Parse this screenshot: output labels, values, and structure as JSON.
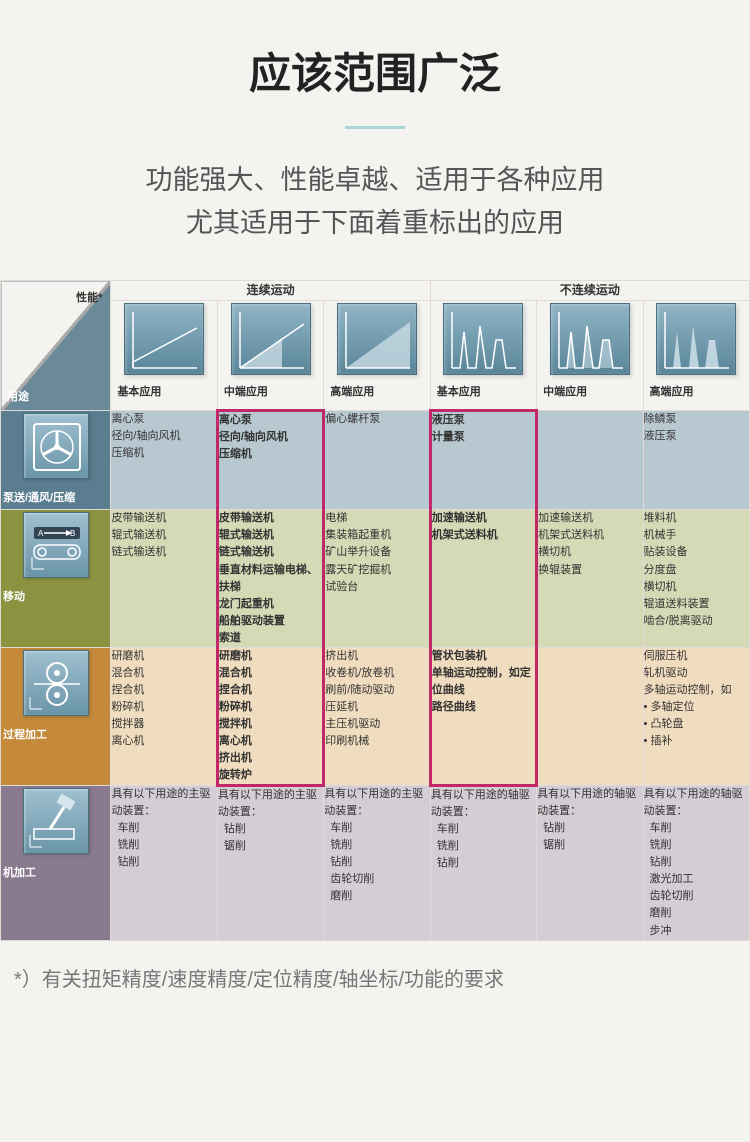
{
  "title": "应该范围广泛",
  "subtitle_l1": "功能强大、性能卓越、适用于各种应用",
  "subtitle_l2": "尤其适用于下面着重标出的应用",
  "corner": {
    "performance": "性能*",
    "usage": "用途"
  },
  "super_headers": {
    "continuous": "连续运动",
    "discontinuous": "不连续运动"
  },
  "col_labels": {
    "c1": "基本应用",
    "c2": "中端应用",
    "c3": "高端应用",
    "c4": "基本应用",
    "c5": "中端应用",
    "c6": "高端应用"
  },
  "highlight_color": "#c02868",
  "chart_style": {
    "bg_gradient_top": "#8fb5c5",
    "bg_gradient_bottom": "#5a8599",
    "line_color": "#ffffff",
    "fill_color": "#d5e5ed"
  },
  "row_colors": {
    "blue": "#b8c8d0",
    "olive": "#d5d9b5",
    "orange": "#f0dcbe",
    "mauve": "#d5cdd5"
  },
  "rows": {
    "r1": {
      "label": "泵送/通风/压缩",
      "icon": "fan",
      "c1": [
        "离心泵",
        "径向/轴向风机",
        "压缩机"
      ],
      "c2": [
        "离心泵",
        "径向/轴向风机",
        "压缩机"
      ],
      "c3": [
        "偏心螺杆泵"
      ],
      "c4": [
        "液压泵",
        "计量泵"
      ],
      "c5": [],
      "c6": [
        "除鳞泵",
        "液压泵"
      ]
    },
    "r2": {
      "label": "移动",
      "icon": "conveyor",
      "c1": [
        "皮带输送机",
        "辊式输送机",
        "链式输送机"
      ],
      "c2": [
        "皮带输送机",
        "辊式输送机",
        "链式输送机",
        "垂直材料运输电梯、扶梯",
        "龙门起重机",
        "船舶驱动装置",
        "索道"
      ],
      "c3": [
        "电梯",
        "集装箱起重机",
        "矿山举升设备",
        "露天矿挖掘机",
        "试验台"
      ],
      "c4": [
        "加速输送机",
        "机架式送料机"
      ],
      "c5": [
        "加速输送机",
        "机架式送料机",
        "横切机",
        "换辊装置"
      ],
      "c6": [
        "堆料机",
        "机械手",
        "贴装设备",
        "分度盘",
        "横切机",
        "辊道送料装置",
        "啮合/脱离驱动"
      ]
    },
    "r3": {
      "label": "过程加工",
      "icon": "rollers",
      "c1": [
        "研磨机",
        "混合机",
        "捏合机",
        "粉碎机",
        "搅拌器",
        "离心机"
      ],
      "c2": [
        "研磨机",
        "混合机",
        "捏合机",
        "粉碎机",
        "搅拌机",
        "离心机",
        "挤出机",
        "旋转炉"
      ],
      "c3": [
        "挤出机",
        "收卷机/放卷机",
        "刷前/随动驱动",
        "压延机",
        "主压机驱动",
        "印刷机械"
      ],
      "c4": [
        "管状包装机",
        "单轴运动控制，如定位曲线",
        "路径曲线"
      ],
      "c5": [],
      "c6": [
        "伺服压机",
        "轧机驱动",
        "多轴运动控制，如",
        "• 多轴定位",
        "• 凸轮盘",
        "• 插补"
      ]
    },
    "r4": {
      "label": "机加工",
      "icon": "spindle",
      "c1_head": "具有以下用途的主驱动装置：",
      "c1": [
        "车削",
        "铣削",
        "钻削"
      ],
      "c2_head": "具有以下用途的主驱动装置：",
      "c2": [
        "钻削",
        "锯削"
      ],
      "c3_head": "具有以下用途的主驱动装置：",
      "c3": [
        "车削",
        "铣削",
        "钻削",
        "齿轮切削",
        "磨削"
      ],
      "c4_head": "具有以下用途的轴驱动装置：",
      "c4": [
        "车削",
        "铣削",
        "钻削"
      ],
      "c5_head": "具有以下用途的轴驱动装置：",
      "c5": [
        "钻削",
        "锯削"
      ],
      "c6_head": "具有以下用途的轴驱动装置：",
      "c6": [
        "车削",
        "铣削",
        "钻削",
        "激光加工",
        "齿轮切削",
        "磨削",
        "步冲"
      ]
    }
  },
  "footnote": "*）有关扭矩精度/速度精度/定位精度/轴坐标/功能的要求"
}
